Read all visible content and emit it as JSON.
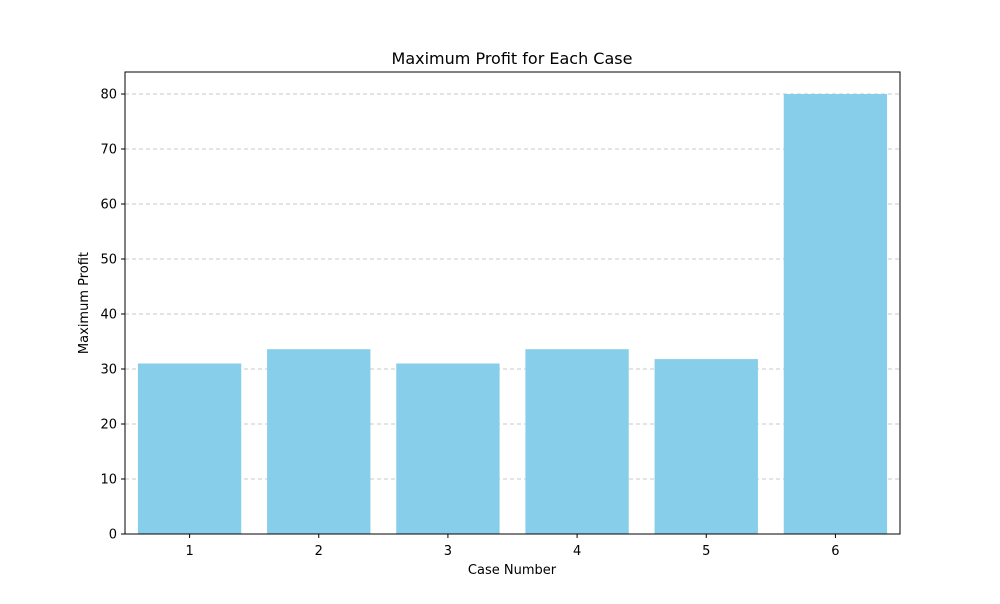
{
  "chart_data": {
    "type": "bar",
    "title": "Maximum Profit for Each Case",
    "xlabel": "Case Number",
    "ylabel": "Maximum Profit",
    "categories": [
      "1",
      "2",
      "3",
      "4",
      "5",
      "6"
    ],
    "values": [
      31,
      33.6,
      31,
      33.6,
      31.8,
      80
    ],
    "ylim": [
      0,
      84
    ],
    "yticks": [
      0,
      10,
      20,
      30,
      40,
      50,
      60,
      70,
      80
    ],
    "grid": {
      "axis": "y",
      "style": "dashed"
    },
    "colors": {
      "bar": "#87ceeb",
      "grid": "#c8c8c8",
      "axis": "#000000"
    }
  }
}
